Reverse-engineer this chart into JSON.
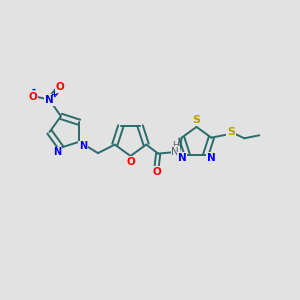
{
  "bg_color": "#e2e2e2",
  "bond_color": "#2a6b6b",
  "bond_lw": 1.4,
  "figsize": [
    3.0,
    3.0
  ],
  "dpi": 100,
  "xlim": [
    0,
    10
  ],
  "ylim": [
    0,
    10
  ]
}
